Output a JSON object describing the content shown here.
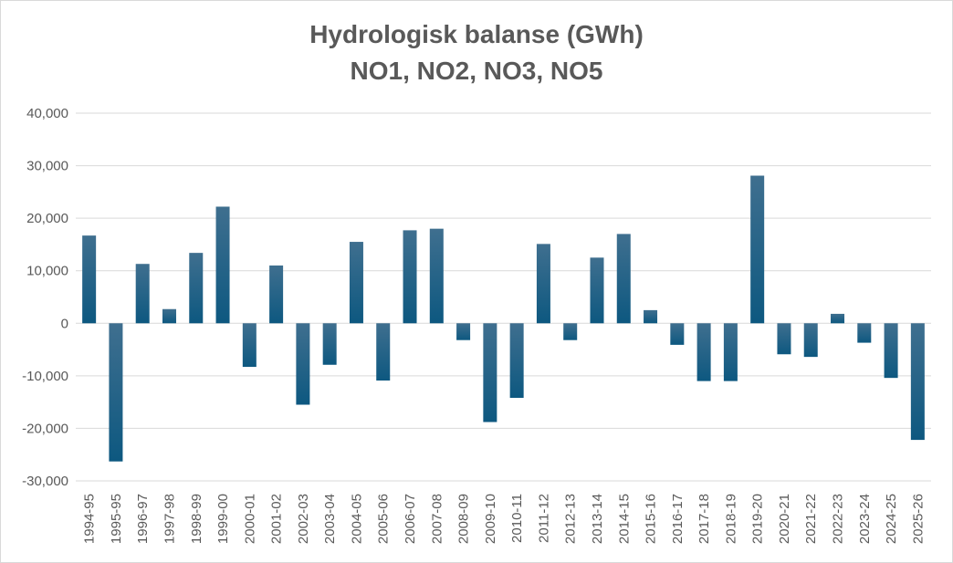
{
  "chart_data": {
    "type": "bar",
    "title": "Hydrologisk balanse (GWh)",
    "subtitle": "NO1, NO2, NO3, NO5",
    "xlabel": "",
    "ylabel": "",
    "ylim": [
      -30000,
      40000
    ],
    "yticks": [
      -30000,
      -20000,
      -10000,
      0,
      10000,
      20000,
      30000,
      40000
    ],
    "ytick_labels": [
      "-30,000",
      "-20,000",
      "-10,000",
      "0",
      "10,000",
      "20,000",
      "30,000",
      "40,000"
    ],
    "grid": true,
    "legend": "none",
    "bar_color_top": "#3f6f8f",
    "bar_color_bottom": "#0d5880",
    "categories": [
      "1994-95",
      "1995-95",
      "1996-97",
      "1997-98",
      "1998-99",
      "1999-00",
      "2000-01",
      "2001-02",
      "2002-03",
      "2003-04",
      "2004-05",
      "2005-06",
      "2006-07",
      "2007-08",
      "2008-09",
      "2009-10",
      "2010-11",
      "2011-12",
      "2012-13",
      "2013-14",
      "2014-15",
      "2015-16",
      "2016-17",
      "2017-18",
      "2018-19",
      "2019-20",
      "2020-21",
      "2021-22",
      "2022-23",
      "2023-24",
      "2024-25",
      "2025-26"
    ],
    "values": [
      16700,
      -26300,
      11300,
      2700,
      13400,
      22200,
      -8300,
      11000,
      -15500,
      -7900,
      15500,
      -10900,
      17700,
      18000,
      -3200,
      -18800,
      -14200,
      15100,
      -3200,
      12500,
      17000,
      2500,
      -4100,
      -11000,
      -11000,
      28100,
      -5900,
      -6400,
      1800,
      -3700,
      -10400,
      -22200
    ]
  }
}
